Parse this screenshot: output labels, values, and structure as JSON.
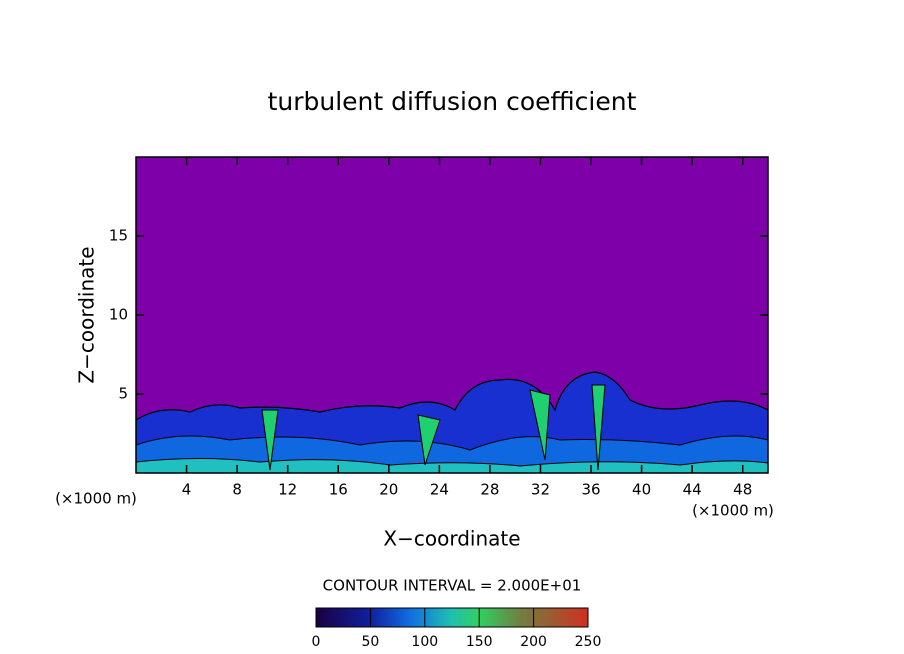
{
  "chart_data": {
    "type": "contour",
    "title": "turbulent diffusion coefficient",
    "x_label": "X−coordinate",
    "y_label": "Z−coordinate",
    "x_unit": "(×1000 m)",
    "y_unit": "(×1000 m)",
    "xlim": [
      0,
      50
    ],
    "xticks": [
      4,
      8,
      12,
      16,
      20,
      24,
      28,
      32,
      36,
      40,
      44,
      48
    ],
    "ylim": [
      0,
      20
    ],
    "yticks": [
      5,
      10,
      15
    ],
    "contour_interval": "CONTOUR INTERVAL = 2.000E+01",
    "colorbar": {
      "lim": [
        0,
        250
      ],
      "ticks": [
        0,
        50,
        100,
        150,
        200,
        250
      ]
    }
  }
}
